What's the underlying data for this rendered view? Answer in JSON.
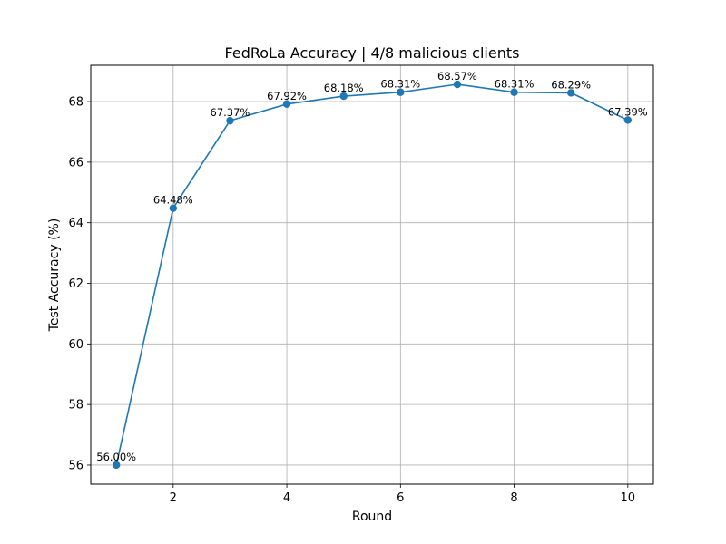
{
  "chart_data": {
    "type": "line",
    "title": "FedRoLa Accuracy | 4/8 malicious clients",
    "xlabel": "Round",
    "ylabel": "Test Accuracy (%)",
    "x": [
      1,
      2,
      3,
      4,
      5,
      6,
      7,
      8,
      9,
      10
    ],
    "y": [
      56.0,
      64.48,
      67.37,
      67.92,
      68.18,
      68.31,
      68.57,
      68.31,
      68.29,
      67.39
    ],
    "point_labels": [
      "56.00%",
      "64.48%",
      "67.37%",
      "67.92%",
      "68.18%",
      "68.31%",
      "68.57%",
      "68.31%",
      "68.29%",
      "67.39%"
    ],
    "xlim": [
      0.55,
      10.45
    ],
    "ylim": [
      55.37,
      69.2
    ],
    "xticks": [
      2,
      4,
      6,
      8,
      10
    ],
    "yticks": [
      56,
      58,
      60,
      62,
      64,
      66,
      68
    ],
    "grid": true,
    "line_color": "#1f77b4"
  }
}
